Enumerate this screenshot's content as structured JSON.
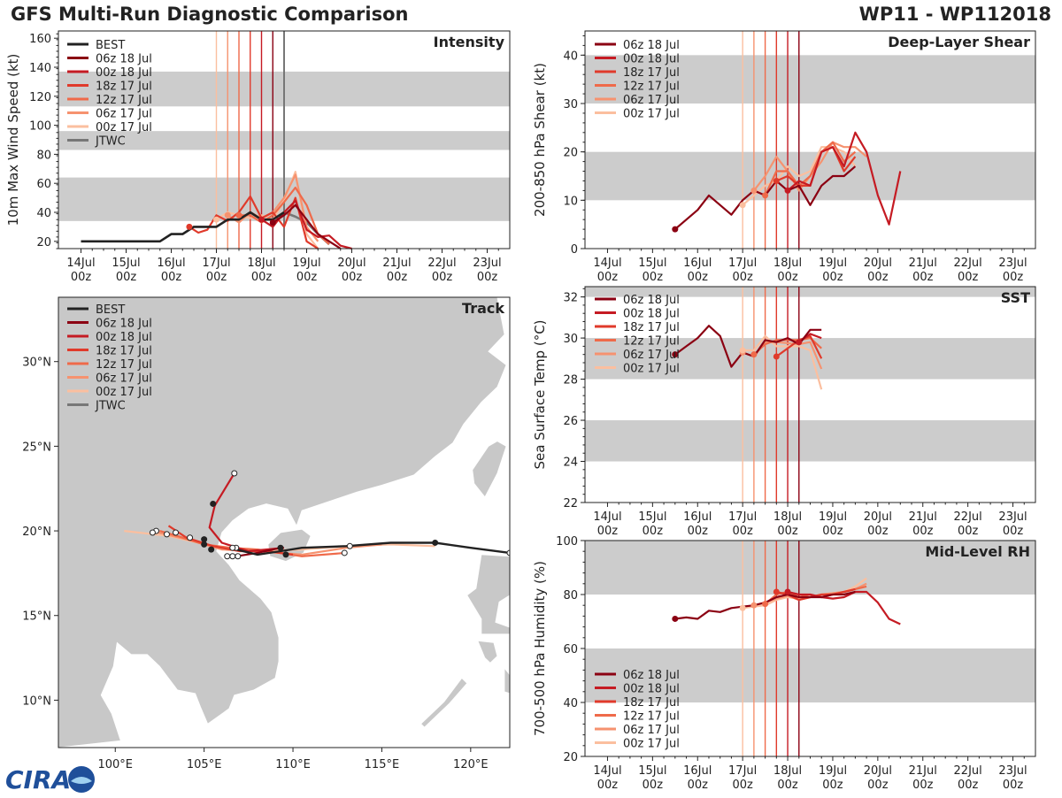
{
  "header": {
    "title": "GFS Multi-Run Diagnostic Comparison",
    "storm_id": "WP11 - WP112018"
  },
  "logo": {
    "text": "CIRA"
  },
  "colors": {
    "best": "#222222",
    "jtwc": "#777777",
    "runs": [
      "#8b0012",
      "#c51b23",
      "#e03a2b",
      "#ef6a4a",
      "#f6926f",
      "#fbbf9f"
    ],
    "band": "#cccccc",
    "land": "#c8c8c8"
  },
  "time_axis": {
    "ticks": [
      "14Jul 00z",
      "15Jul 00z",
      "16Jul 00z",
      "17Jul 00z",
      "18Jul 00z",
      "19Jul 00z",
      "20Jul 00z",
      "21Jul 00z",
      "22Jul 00z",
      "23Jul 00z"
    ]
  },
  "chart_data": [
    {
      "id": "intensity",
      "type": "line",
      "title": "Intensity",
      "ylabel": "10m Max Wind Speed (kt)",
      "ylim": [
        15,
        165
      ],
      "yticks": [
        20,
        40,
        60,
        80,
        100,
        120,
        140,
        160
      ],
      "bands": [
        [
          34,
          64
        ],
        [
          83,
          96
        ],
        [
          113,
          137
        ]
      ],
      "legend": [
        "BEST",
        "06z 18 Jul",
        "00z 18 Jul",
        "18z 17 Jul",
        "12z 17 Jul",
        "06z 17 Jul",
        "00z 17 Jul",
        "JTWC"
      ],
      "init_days": [
        3.0,
        3.25,
        3.5,
        3.75,
        4.0,
        4.25
      ],
      "jtwc_day": 4.5,
      "series": [
        {
          "name": "BEST",
          "x": [
            0,
            1,
            1.75,
            2,
            2.25,
            2.5,
            2.75,
            3,
            3.25,
            3.5,
            3.75,
            4,
            4.25,
            4.5
          ],
          "y": [
            20,
            20,
            20,
            25,
            25,
            30,
            30,
            30,
            35,
            35,
            40,
            35,
            35,
            40
          ]
        },
        {
          "name": "06z 18 Jul",
          "x": [
            4.25,
            4.5,
            4.75,
            5.0,
            5.25,
            5.5,
            5.75
          ],
          "y": [
            33,
            38,
            45,
            35,
            25,
            20,
            15
          ]
        },
        {
          "name": "00z 18 Jul",
          "x": [
            4.0,
            4.25,
            4.5,
            4.75,
            5.0,
            5.25,
            5.5,
            5.75,
            6.0
          ],
          "y": [
            35,
            30,
            40,
            48,
            28,
            23,
            24,
            17,
            15
          ]
        },
        {
          "name": "18z 17 Jul",
          "x": [
            2.4,
            2.6,
            2.8,
            3.0,
            3.25,
            3.5,
            3.75,
            4.0,
            4.25,
            4.5,
            4.75,
            5.0,
            5.25
          ],
          "y": [
            30,
            26,
            28,
            38,
            34,
            40,
            51,
            36,
            40,
            30,
            50,
            20,
            15
          ]
        },
        {
          "name": "12z 17 Jul",
          "x": [
            3.5,
            3.75,
            4.0,
            4.25,
            4.5,
            4.75,
            5.0,
            5.25,
            5.5
          ],
          "y": [
            38,
            38,
            33,
            38,
            47,
            57,
            45,
            25,
            18
          ]
        },
        {
          "name": "06z 17 Jul",
          "x": [
            3.25,
            3.5,
            3.75,
            4.0,
            4.25,
            4.5,
            4.75,
            5.0,
            5.25
          ],
          "y": [
            38,
            33,
            40,
            36,
            40,
            50,
            66,
            30,
            20
          ]
        },
        {
          "name": "00z 17 Jul",
          "x": [
            3.0,
            3.25,
            3.5,
            3.75,
            4.0,
            4.25,
            4.5,
            4.75,
            5.0,
            5.25
          ],
          "y": [
            35,
            40,
            38,
            36,
            38,
            35,
            48,
            68,
            25,
            15
          ]
        },
        {
          "name": "JTWC",
          "x": [
            4.5,
            4.75,
            5.0,
            5.25,
            5.5
          ],
          "y": [
            40,
            37,
            33,
            25,
            18
          ]
        }
      ]
    },
    {
      "id": "shear",
      "type": "line",
      "title": "Deep-Layer Shear",
      "ylabel": "200-850 hPa Shear (kt)",
      "ylim": [
        0,
        45
      ],
      "yticks": [
        0,
        10,
        20,
        30,
        40
      ],
      "bands": [
        [
          10,
          20
        ],
        [
          30,
          40
        ]
      ],
      "legend": [
        "06z 18 Jul",
        "00z 18 Jul",
        "18z 17 Jul",
        "12z 17 Jul",
        "06z 17 Jul",
        "00z 17 Jul"
      ],
      "init_days": [
        3.0,
        3.25,
        3.5,
        3.75,
        4.0,
        4.25
      ],
      "series": [
        {
          "name": "06z 18 Jul",
          "x": [
            1.5,
            2.0,
            2.25,
            2.75,
            3.0,
            3.25,
            3.5,
            3.75,
            4.0,
            4.25,
            4.5,
            4.75,
            5.0,
            5.25,
            5.5
          ],
          "y": [
            4,
            8,
            11,
            7,
            10,
            12,
            11,
            14,
            12,
            13,
            9,
            13,
            15,
            15,
            17
          ]
        },
        {
          "name": "00z 18 Jul",
          "x": [
            4.0,
            4.25,
            4.5,
            4.75,
            5.0,
            5.25,
            5.5,
            5.75,
            6.0,
            6.25,
            6.5
          ],
          "y": [
            12,
            14,
            13,
            20,
            21,
            17,
            24,
            20,
            11,
            5,
            16
          ]
        },
        {
          "name": "18z 17 Jul",
          "x": [
            3.75,
            4.0,
            4.25,
            4.5,
            4.75,
            5.0,
            5.25,
            5.5
          ],
          "y": [
            14,
            15,
            13,
            13,
            20,
            21,
            16,
            19
          ]
        },
        {
          "name": "12z 17 Jul",
          "x": [
            3.5,
            3.75,
            4.0,
            4.25,
            4.5,
            4.75,
            5.0,
            5.25,
            5.5
          ],
          "y": [
            11,
            16,
            16,
            13,
            15,
            20,
            22,
            18,
            20
          ]
        },
        {
          "name": "06z 17 Jul",
          "x": [
            3.25,
            3.5,
            3.75,
            4.0,
            4.25,
            4.5,
            4.75,
            5.0,
            5.25,
            5.5,
            5.75
          ],
          "y": [
            12,
            15,
            19,
            16,
            12,
            15,
            18,
            22,
            21,
            21,
            19
          ]
        },
        {
          "name": "00z 17 Jul",
          "x": [
            3.0,
            3.25,
            3.5,
            3.75,
            4.0,
            4.25,
            4.5,
            4.75,
            5.0,
            5.25,
            5.5
          ],
          "y": [
            9,
            11,
            13,
            14,
            17,
            15,
            16,
            21,
            21,
            20,
            17
          ]
        }
      ]
    },
    {
      "id": "sst",
      "type": "line",
      "title": "SST",
      "ylabel": "Sea Surface Temp (°C)",
      "ylim": [
        22,
        32.5
      ],
      "yticks": [
        22,
        24,
        26,
        28,
        30,
        32
      ],
      "bands": [
        [
          24,
          26
        ],
        [
          28,
          30
        ],
        [
          32,
          32.5
        ]
      ],
      "legend": [
        "06z 18 Jul",
        "00z 18 Jul",
        "18z 17 Jul",
        "12z 17 Jul",
        "06z 17 Jul",
        "00z 17 Jul"
      ],
      "init_days": [
        3.0,
        3.25,
        3.5,
        3.75,
        4.0,
        4.25
      ],
      "series": [
        {
          "name": "06z 18 Jul",
          "x": [
            1.5,
            1.75,
            2.0,
            2.25,
            2.5,
            2.75,
            3.0,
            3.25,
            3.5,
            3.75,
            4.0,
            4.25,
            4.5,
            4.75
          ],
          "y": [
            29.2,
            29.6,
            30.0,
            30.6,
            30.1,
            28.6,
            29.3,
            29.1,
            29.9,
            29.8,
            30.0,
            29.7,
            30.4,
            30.4
          ]
        },
        {
          "name": "00z 18 Jul",
          "x": [
            4.25,
            4.5,
            4.75
          ],
          "y": [
            29.8,
            30.2,
            30.0
          ]
        },
        {
          "name": "18z 17 Jul",
          "x": [
            3.75,
            4.25,
            4.5,
            4.75
          ],
          "y": [
            29.1,
            29.9,
            30.1,
            29.0
          ]
        },
        {
          "name": "12z 17 Jul",
          "x": [
            3.25,
            3.5,
            3.75,
            4.25,
            4.5,
            4.75
          ],
          "y": [
            29.2,
            29.7,
            29.9,
            29.9,
            30.0,
            29.5
          ]
        },
        {
          "name": "06z 17 Jul",
          "x": [
            3.0,
            3.25,
            3.5,
            3.75,
            4.25,
            4.5,
            4.75
          ],
          "y": [
            29.3,
            29.1,
            29.8,
            29.8,
            29.7,
            29.8,
            28.5
          ]
        },
        {
          "name": "00z 17 Jul",
          "x": [
            3.0,
            3.25,
            3.5,
            3.75,
            4.25,
            4.5,
            4.75
          ],
          "y": [
            29.4,
            29.4,
            30.1,
            29.6,
            29.6,
            29.4,
            27.5
          ]
        }
      ]
    },
    {
      "id": "rh",
      "type": "line",
      "title": "Mid-Level RH",
      "ylabel": "700-500 hPa Humidity (%)",
      "ylim": [
        20,
        100
      ],
      "yticks": [
        20,
        40,
        60,
        80,
        100
      ],
      "bands": [
        [
          40,
          60
        ],
        [
          80,
          100
        ]
      ],
      "legend": [
        "06z 18 Jul",
        "00z 18 Jul",
        "18z 17 Jul",
        "12z 17 Jul",
        "06z 17 Jul",
        "00z 17 Jul"
      ],
      "init_days": [
        3.0,
        3.25,
        3.5,
        3.75,
        4.0,
        4.25
      ],
      "series": [
        {
          "name": "06z 18 Jul",
          "x": [
            1.5,
            1.75,
            2.0,
            2.25,
            2.5,
            2.75,
            3.0,
            3.25,
            3.5,
            3.75,
            4.0,
            4.25,
            4.5,
            4.75,
            5.0,
            5.25,
            5.5
          ],
          "y": [
            71,
            71.5,
            71,
            74,
            73.5,
            75,
            75.5,
            76,
            77,
            79,
            80,
            79,
            79,
            79,
            80,
            80,
            81
          ]
        },
        {
          "name": "00z 18 Jul",
          "x": [
            4.0,
            4.25,
            4.5,
            4.75,
            5.0,
            5.25,
            5.5,
            5.75,
            6.0,
            6.25,
            6.5
          ],
          "y": [
            81,
            80,
            80,
            79,
            78.5,
            79,
            81,
            81,
            77,
            71,
            69
          ]
        },
        {
          "name": "18z 17 Jul",
          "x": [
            3.75,
            4.0,
            4.25,
            4.5,
            4.75,
            5.0,
            5.25,
            5.5
          ],
          "y": [
            81,
            80,
            78,
            79,
            80,
            80,
            81,
            82
          ]
        },
        {
          "name": "12z 17 Jul",
          "x": [
            3.5,
            3.75,
            4.0,
            4.25,
            4.5,
            4.75,
            5.0,
            5.25,
            5.5,
            5.75
          ],
          "y": [
            76.5,
            80,
            81,
            79,
            80,
            79,
            80,
            81,
            82,
            83
          ]
        },
        {
          "name": "06z 17 Jul",
          "x": [
            3.25,
            3.5,
            3.75,
            4.0,
            4.25,
            4.5,
            4.75,
            5.0,
            5.25,
            5.5,
            5.75
          ],
          "y": [
            76,
            77,
            78.5,
            79.5,
            78,
            79,
            80,
            80.5,
            81,
            82,
            84
          ]
        },
        {
          "name": "00z 17 Jul",
          "x": [
            3.0,
            3.25,
            3.5,
            3.75,
            4.0,
            4.25,
            4.5,
            4.75,
            5.0,
            5.25,
            5.5,
            5.75
          ],
          "y": [
            75,
            75.5,
            76,
            78,
            79,
            78.5,
            79,
            80,
            80.5,
            81,
            83,
            86
          ]
        }
      ]
    },
    {
      "id": "track",
      "type": "line",
      "title": "Track",
      "xlim": [
        96.8,
        122.2
      ],
      "ylim": [
        7.2,
        33.8
      ],
      "xticks": [
        100,
        105,
        110,
        115,
        120
      ],
      "xtick_labels": [
        "100°E",
        "105°E",
        "110°E",
        "115°E",
        "120°E"
      ],
      "yticks": [
        10,
        15,
        20,
        25,
        30
      ],
      "ytick_labels": [
        "10°N",
        "15°N",
        "20°N",
        "25°N",
        "30°N"
      ],
      "legend": [
        "BEST",
        "06z 18 Jul",
        "00z 18 Jul",
        "18z 17 Jul",
        "12z 17 Jul",
        "06z 17 Jul",
        "00z 17 Jul",
        "JTWC"
      ],
      "series": [
        {
          "name": "BEST",
          "lon": [
            122.2,
            120.0,
            118.0,
            115.5,
            113.0,
            110.5,
            109.3,
            108.0,
            106.8
          ],
          "lat": [
            18.7,
            19.0,
            19.3,
            19.3,
            19.1,
            19.0,
            18.8,
            18.6,
            18.9
          ]
        },
        {
          "name": "06z 18 Jul",
          "lon": [
            109.3,
            108.0,
            106.8
          ],
          "lat": [
            19.0,
            18.7,
            18.5
          ]
        },
        {
          "name": "00z 18 Jul",
          "lon": [
            109.5,
            107.5,
            106.0,
            105.3,
            105.6,
            106.7
          ],
          "lat": [
            19.0,
            18.8,
            19.3,
            20.2,
            21.5,
            23.4
          ]
        },
        {
          "name": "18z 17 Jul",
          "lon": [
            110.0,
            108.5,
            107.0,
            105.5,
            104.0,
            103.0
          ],
          "lat": [
            18.6,
            18.8,
            18.8,
            19.1,
            19.6,
            20.3
          ]
        },
        {
          "name": "12z 17 Jul",
          "lon": [
            113.0,
            110.5,
            108.0,
            106.5,
            105.0,
            103.5,
            102.5
          ],
          "lat": [
            18.7,
            18.5,
            18.9,
            19.0,
            19.2,
            19.7,
            20.0
          ]
        },
        {
          "name": "06z 17 Jul",
          "lon": [
            115.0,
            113.0,
            110.5,
            108.0,
            106.0,
            104.0,
            102.0
          ],
          "lat": [
            19.2,
            19.0,
            18.6,
            18.8,
            18.9,
            19.5,
            20.0
          ]
        },
        {
          "name": "00z 17 Jul",
          "lon": [
            118.0,
            115.5,
            113.0,
            110.5,
            108.0,
            105.5,
            103.0,
            100.5
          ],
          "lat": [
            19.1,
            19.2,
            19.1,
            18.9,
            18.8,
            19.1,
            19.7,
            20.0
          ]
        },
        {
          "name": "JTWC",
          "lon": [
            106.8,
            106.8
          ],
          "lat": [
            18.9,
            18.9
          ]
        }
      ],
      "filled_markers": [
        [
          118.0,
          19.3
        ],
        [
          109.3,
          19.0
        ],
        [
          109.6,
          18.6
        ],
        [
          105.4,
          18.9
        ],
        [
          105.0,
          19.2
        ],
        [
          105.5,
          21.6
        ],
        [
          105.0,
          19.5
        ]
      ],
      "open_markers": [
        [
          122.2,
          18.7
        ],
        [
          113.2,
          19.1
        ],
        [
          112.9,
          18.7
        ],
        [
          106.8,
          19.0
        ],
        [
          106.6,
          18.5
        ],
        [
          106.9,
          18.5
        ],
        [
          104.2,
          19.6
        ],
        [
          103.4,
          19.9
        ],
        [
          102.9,
          19.8
        ],
        [
          102.3,
          20.0
        ],
        [
          102.1,
          19.9
        ],
        [
          106.7,
          23.4
        ],
        [
          106.6,
          19.0
        ],
        [
          106.3,
          18.5
        ]
      ]
    }
  ]
}
